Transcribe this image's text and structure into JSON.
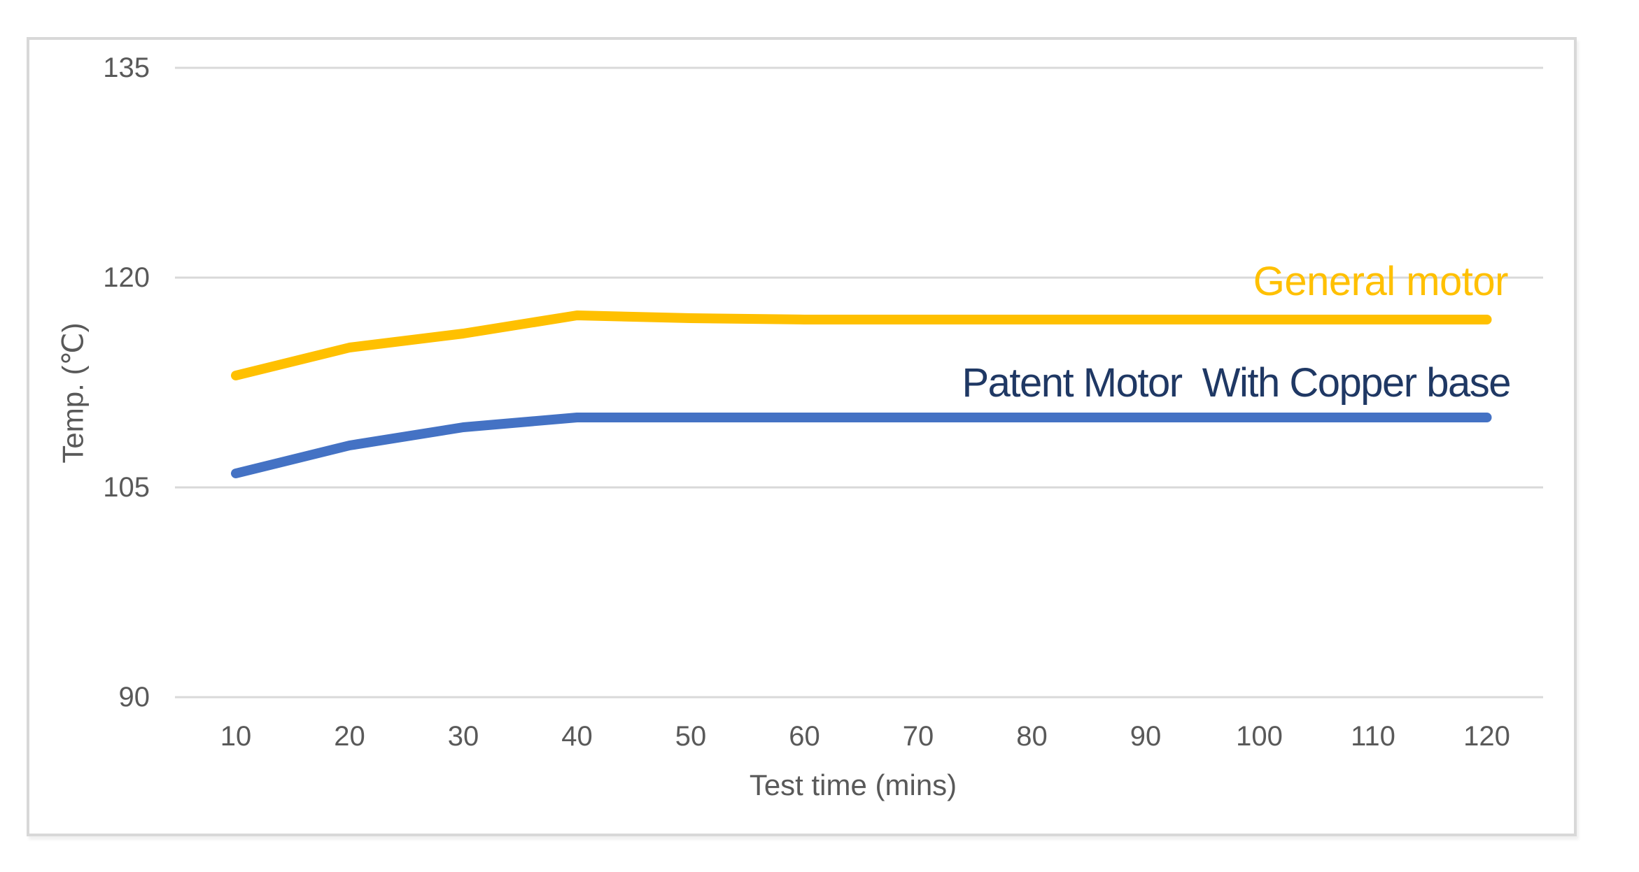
{
  "chart_data": {
    "type": "line",
    "title": "",
    "x": [
      10,
      20,
      30,
      40,
      50,
      60,
      70,
      80,
      90,
      100,
      110,
      120
    ],
    "xlabel": "Test time (mins)",
    "ylabel": "Temp. (℃)",
    "ylim": [
      90,
      135
    ],
    "yticks": [
      90,
      105,
      120,
      135
    ],
    "xticks": [
      10,
      20,
      30,
      40,
      50,
      60,
      70,
      80,
      90,
      100,
      110,
      120
    ],
    "grid": "horizontal-only",
    "legend_position": "inline-right-of-plot",
    "series": [
      {
        "name": "General motor",
        "color": "#FFC000",
        "label_color": "#FFC000",
        "values": [
          113,
          115,
          116,
          117.3,
          117.1,
          117,
          117,
          117,
          117,
          117,
          117,
          117
        ]
      },
      {
        "name": "Patent Motor  With Copper base",
        "color": "#4472C4",
        "label_color": "#1F3864",
        "values": [
          106,
          108,
          109.3,
          110,
          110,
          110,
          110,
          110,
          110,
          110,
          110,
          110
        ]
      }
    ]
  },
  "colors": {
    "frame_border": "#D8D8D8",
    "gridline": "#D9D9D9",
    "tick_text": "#595959",
    "background": "#FFFFFF"
  }
}
